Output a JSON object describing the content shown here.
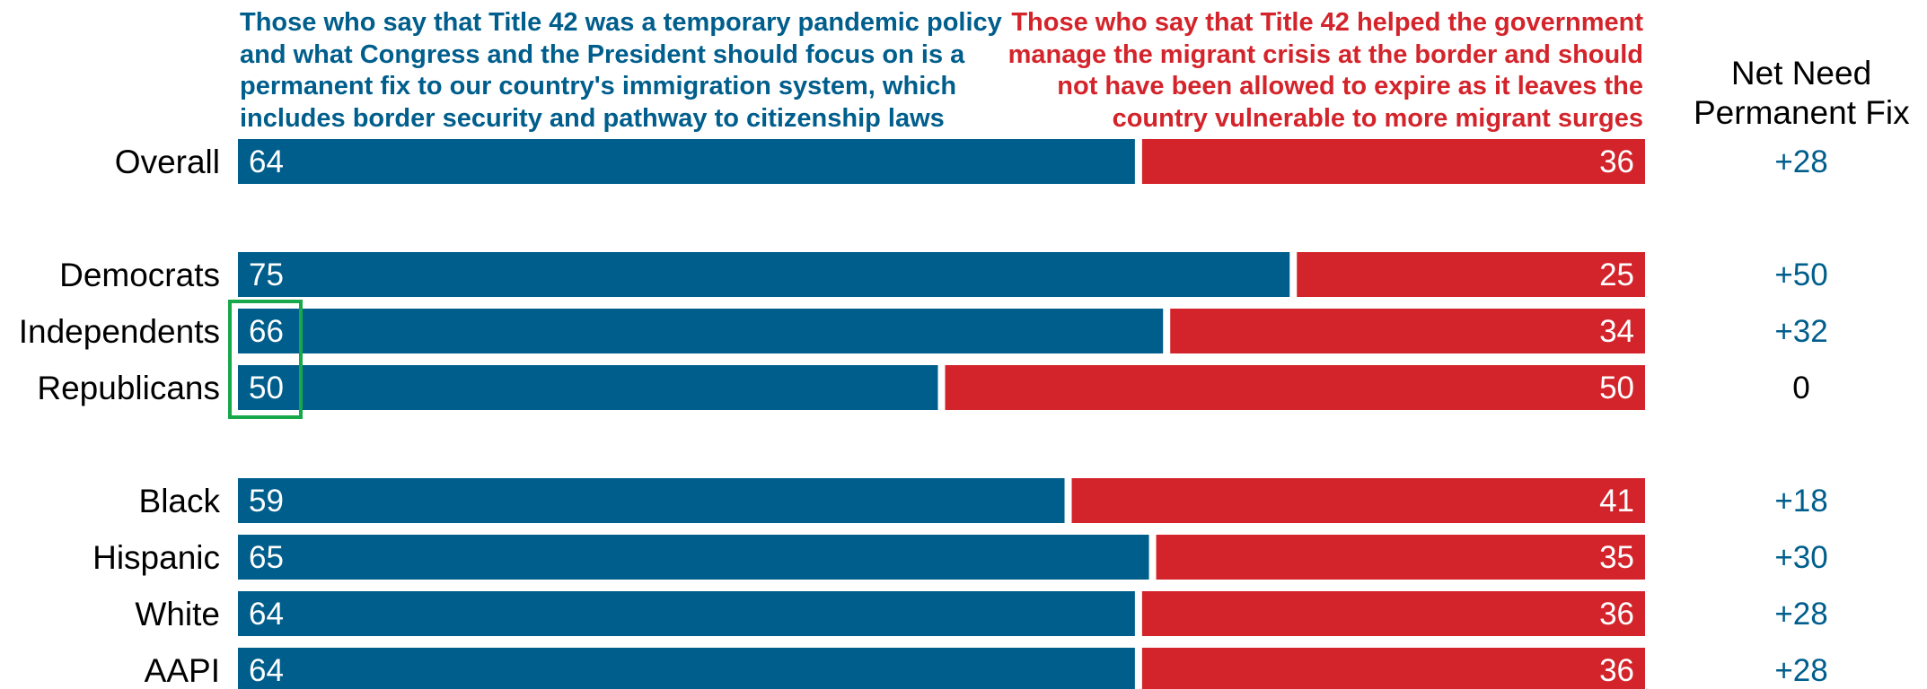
{
  "colors": {
    "permanent_fix": "#005e8c",
    "title42": "#d4242b",
    "net_positive": "#005e8c",
    "net_zero": "#000000",
    "highlight_box": "#16a84a"
  },
  "header": {
    "left": "Those who say that Title 42 was a temporary pandemic policy\nand what Congress and the President should focus on is a\npermanent fix to our country's immigration system, which\nincludes border security and pathway to citizenship laws",
    "right": "Those who say that Title 42 helped the government\nmanage the migrant crisis at the border and should\nnot have been allowed to expire as it leaves the\ncountry vulnerable to more migrant surges",
    "net": "Net Need\nPermanent Fix"
  },
  "chart_data": {
    "type": "bar",
    "orientation": "horizontal",
    "stacked": true,
    "xlim": [
      0,
      100
    ],
    "categories": [
      "Overall",
      "Democrats",
      "Independents",
      "Republicans",
      "Black",
      "Hispanic",
      "White",
      "AAPI"
    ],
    "groups": [
      [
        "Overall"
      ],
      [
        "Democrats",
        "Independents",
        "Republicans"
      ],
      [
        "Black",
        "Hispanic",
        "White",
        "AAPI"
      ]
    ],
    "series": [
      {
        "values": [
          64,
          75,
          66,
          50,
          59,
          65,
          64,
          64
        ]
      },
      {
        "values": [
          36,
          25,
          34,
          50,
          41,
          35,
          36,
          36
        ]
      }
    ],
    "net": [
      "+28",
      "+50",
      "+32",
      "0",
      "+18",
      "+30",
      "+28",
      "+28"
    ],
    "highlighted_values": [
      "Independents",
      "Republicans"
    ]
  }
}
